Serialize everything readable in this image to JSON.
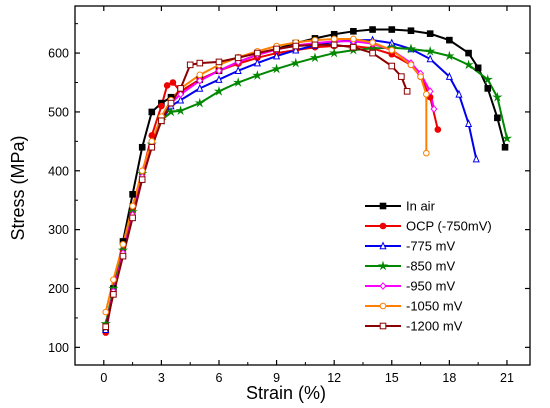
{
  "chart_data": {
    "type": "line",
    "title": "",
    "xlabel": "Strain (%)",
    "ylabel": "Stress (MPa)",
    "xlim": [
      -1.5,
      22.2
    ],
    "ylim": [
      70,
      680
    ],
    "xticks": [
      0,
      3,
      6,
      9,
      12,
      15,
      18,
      21
    ],
    "yticks": [
      100,
      200,
      300,
      400,
      500,
      600
    ],
    "legend_position": "bottom-right",
    "grid": false,
    "series": [
      {
        "name": "In air",
        "color": "#000000",
        "marker": "square-filled",
        "x": [
          0.1,
          0.5,
          1.0,
          1.5,
          2.0,
          2.5,
          3.0,
          3.5,
          4.0,
          5.0,
          6.0,
          7.0,
          8.0,
          9.0,
          10.0,
          11.0,
          12.0,
          13.0,
          14.0,
          15.0,
          16.0,
          17.0,
          18.0,
          19.0,
          19.5,
          20.0,
          20.5,
          20.9
        ],
        "y": [
          130,
          200,
          280,
          360,
          440,
          500,
          515,
          525,
          535,
          555,
          570,
          585,
          597,
          607,
          617,
          625,
          632,
          637,
          640,
          640,
          638,
          633,
          622,
          600,
          575,
          540,
          490,
          440
        ]
      },
      {
        "name": "OCP (-750mV)",
        "color": "#ee0000",
        "marker": "circle-filled",
        "x": [
          0.1,
          0.5,
          1.0,
          1.5,
          2.0,
          2.5,
          3.0,
          3.3,
          3.6,
          4.0,
          5.0,
          6.0,
          7.0,
          8.0,
          9.0,
          10.0,
          11.0,
          12.0,
          13.0,
          14.0,
          15.0,
          16.0,
          16.5,
          17.0,
          17.4
        ],
        "y": [
          125,
          195,
          265,
          330,
          395,
          460,
          510,
          545,
          550,
          535,
          555,
          570,
          582,
          592,
          600,
          605,
          610,
          612,
          612,
          608,
          598,
          580,
          560,
          525,
          470
        ]
      },
      {
        "name": "-775 mV",
        "color": "#0000ee",
        "marker": "triangle-open",
        "x": [
          0.1,
          0.5,
          1.0,
          1.5,
          2.0,
          2.5,
          3.0,
          3.5,
          4.0,
          5.0,
          6.0,
          7.0,
          8.0,
          9.0,
          10.0,
          11.0,
          12.0,
          13.0,
          14.0,
          15.0,
          16.0,
          17.0,
          18.0,
          18.5,
          19.0,
          19.4
        ],
        "y": [
          130,
          195,
          260,
          325,
          390,
          445,
          485,
          510,
          520,
          540,
          555,
          570,
          583,
          595,
          605,
          613,
          619,
          622,
          622,
          617,
          607,
          590,
          560,
          530,
          480,
          420
        ]
      },
      {
        "name": "-850 mV",
        "color": "#008800",
        "marker": "star-filled",
        "x": [
          0.1,
          0.5,
          1.0,
          1.5,
          2.0,
          2.5,
          3.0,
          3.5,
          4.0,
          5.0,
          6.0,
          7.0,
          8.0,
          9.0,
          10.0,
          11.0,
          12.0,
          13.0,
          14.0,
          15.0,
          16.0,
          17.0,
          18.0,
          19.0,
          20.0,
          20.5,
          21.0
        ],
        "y": [
          140,
          200,
          265,
          330,
          395,
          445,
          485,
          500,
          502,
          515,
          535,
          550,
          562,
          573,
          583,
          592,
          600,
          605,
          608,
          609,
          607,
          603,
          595,
          580,
          555,
          525,
          455
        ]
      },
      {
        "name": "-950 mV",
        "color": "#ff00ff",
        "marker": "diamond-open",
        "x": [
          0.1,
          0.5,
          1.0,
          1.5,
          2.0,
          2.5,
          3.0,
          3.5,
          4.0,
          5.0,
          6.0,
          7.0,
          8.0,
          9.0,
          10.0,
          11.0,
          12.0,
          13.0,
          14.0,
          15.0,
          16.0,
          16.5,
          17.0,
          17.2
        ],
        "y": [
          135,
          195,
          260,
          325,
          390,
          445,
          490,
          515,
          530,
          553,
          570,
          585,
          597,
          606,
          613,
          617,
          620,
          620,
          616,
          605,
          583,
          565,
          535,
          505
        ]
      },
      {
        "name": "-1050 mV",
        "color": "#ff8000",
        "marker": "circle-open",
        "x": [
          0.1,
          0.5,
          1.0,
          1.5,
          2.0,
          2.5,
          3.0,
          3.5,
          4.0,
          5.0,
          6.0,
          7.0,
          8.0,
          9.0,
          10.0,
          11.0,
          12.0,
          13.0,
          14.0,
          15.0,
          16.0,
          16.5,
          16.8,
          16.8
        ],
        "y": [
          160,
          215,
          275,
          340,
          400,
          450,
          492,
          520,
          540,
          563,
          580,
          593,
          603,
          612,
          618,
          622,
          624,
          624,
          618,
          605,
          580,
          560,
          530,
          430
        ]
      },
      {
        "name": "-1200 mV",
        "color": "#8b0000",
        "marker": "square-open",
        "x": [
          0.1,
          0.5,
          1.0,
          1.5,
          2.0,
          2.5,
          3.0,
          3.5,
          4.0,
          4.5,
          5.0,
          6.0,
          7.0,
          8.0,
          9.0,
          10.0,
          11.0,
          12.0,
          13.0,
          14.0,
          15.0,
          15.5,
          15.8
        ],
        "y": [
          135,
          190,
          255,
          320,
          385,
          440,
          485,
          515,
          540,
          580,
          583,
          585,
          592,
          600,
          607,
          612,
          614,
          614,
          610,
          600,
          578,
          560,
          535
        ]
      }
    ]
  }
}
